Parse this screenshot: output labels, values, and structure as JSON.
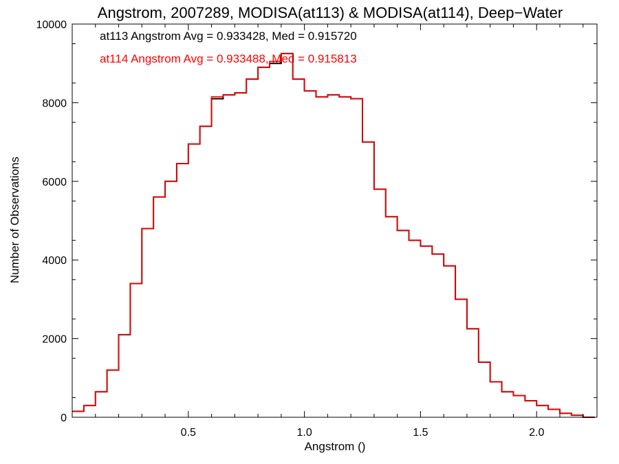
{
  "chart_data": {
    "type": "line",
    "step": true,
    "title": "Angstrom, 2007289, MODISA(at113) & MODISA(at114), Deep−Water",
    "xlabel": "Angstrom ()",
    "ylabel": "Number of Observations",
    "xlim": [
      0.0,
      2.26
    ],
    "ylim": [
      0,
      10000
    ],
    "grid": false,
    "x_ticks": [
      0.5,
      1.0,
      1.5,
      2.0
    ],
    "x_tick_labels": [
      "0.5",
      "1.0",
      "1.5",
      "2.0"
    ],
    "y_ticks": [
      0,
      2000,
      4000,
      6000,
      8000,
      10000
    ],
    "y_tick_labels": [
      "0",
      "2000",
      "4000",
      "6000",
      "8000",
      "10000"
    ],
    "annotations": [
      {
        "text": "at113 Angstrom Avg = 0.933428, Med = 0.915720",
        "color": "#000000"
      },
      {
        "text": "at114 Angstrom Avg = 0.933488, Med = 0.915813",
        "color": "#ff0000"
      }
    ],
    "series": [
      {
        "name": "at113",
        "color": "#000000",
        "x": [
          0.0,
          0.05,
          0.1,
          0.15,
          0.2,
          0.25,
          0.3,
          0.35,
          0.4,
          0.45,
          0.5,
          0.55,
          0.6,
          0.65,
          0.7,
          0.75,
          0.8,
          0.85,
          0.9,
          0.95,
          1.0,
          1.05,
          1.1,
          1.15,
          1.2,
          1.25,
          1.3,
          1.35,
          1.4,
          1.45,
          1.5,
          1.55,
          1.6,
          1.65,
          1.7,
          1.75,
          1.8,
          1.85,
          1.9,
          1.95,
          2.0,
          2.05,
          2.1,
          2.15,
          2.2
        ],
        "y": [
          150,
          300,
          650,
          1200,
          2100,
          3400,
          4800,
          5600,
          6000,
          6450,
          6950,
          7400,
          8100,
          8200,
          8250,
          8600,
          8900,
          9000,
          9250,
          8600,
          8300,
          8150,
          8200,
          8150,
          8100,
          7000,
          5800,
          5100,
          4750,
          4500,
          4350,
          4150,
          3850,
          3000,
          2250,
          1400,
          900,
          650,
          550,
          420,
          300,
          200,
          100,
          50,
          0
        ]
      },
      {
        "name": "at114",
        "color": "#ff0000",
        "x": [
          0.0,
          0.05,
          0.1,
          0.15,
          0.2,
          0.25,
          0.3,
          0.35,
          0.4,
          0.45,
          0.5,
          0.55,
          0.6,
          0.65,
          0.7,
          0.75,
          0.8,
          0.85,
          0.9,
          0.95,
          1.0,
          1.05,
          1.1,
          1.15,
          1.2,
          1.25,
          1.3,
          1.35,
          1.4,
          1.45,
          1.5,
          1.55,
          1.6,
          1.65,
          1.7,
          1.75,
          1.8,
          1.85,
          1.9,
          1.95,
          2.0,
          2.05,
          2.1,
          2.15,
          2.2
        ],
        "y": [
          150,
          300,
          650,
          1200,
          2100,
          3400,
          4800,
          5600,
          6000,
          6450,
          6950,
          7400,
          8150,
          8200,
          8250,
          8600,
          8900,
          9050,
          9250,
          8600,
          8300,
          8150,
          8200,
          8150,
          8100,
          7000,
          5800,
          5100,
          4750,
          4500,
          4350,
          4150,
          3850,
          3000,
          2250,
          1400,
          900,
          650,
          550,
          420,
          300,
          200,
          100,
          50,
          0
        ]
      }
    ]
  }
}
